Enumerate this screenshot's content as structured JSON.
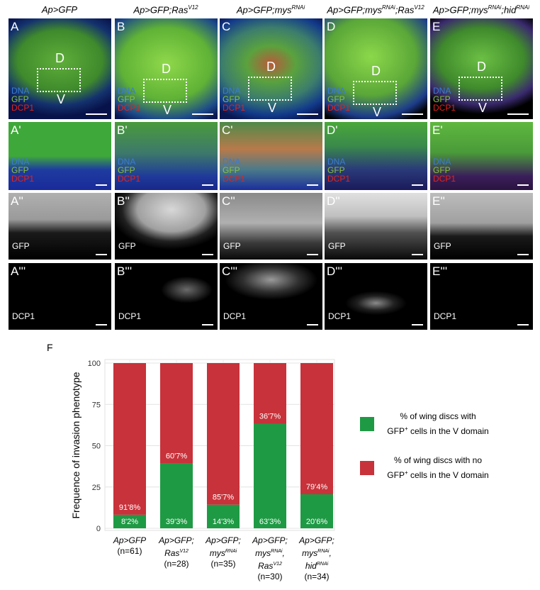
{
  "columns": [
    {
      "id": "A",
      "title_html": "Ap>GFP"
    },
    {
      "id": "B",
      "title_html": "Ap>GFP;Ras<sup>V12</sup>"
    },
    {
      "id": "C",
      "title_html": "Ap>GFP;mys<sup>RNAi</sup>"
    },
    {
      "id": "D",
      "title_html": "Ap>GFP;mys<sup>RNAi</sup>;Ras<sup>V12</sup>"
    },
    {
      "id": "E",
      "title_html": "Ap>GFP;mys<sup>RNAi</sup>;hid<sup>RNAi</sup>"
    }
  ],
  "row_labels": {
    "r0": [
      "A",
      "B",
      "C",
      "D",
      "E"
    ],
    "r1": [
      "A'",
      "B'",
      "C'",
      "D'",
      "E'"
    ],
    "r2": [
      "A''",
      "B''",
      "C''",
      "D''",
      "E''"
    ],
    "r3": [
      "A'''",
      "B'''",
      "C'''",
      "D'''",
      "E'''"
    ]
  },
  "stain": {
    "dna": "DNA",
    "gfp": "GFP",
    "dcp1": "DCP1"
  },
  "domains": {
    "d": "D",
    "v": "V"
  },
  "colors": {
    "green": "#1e9a44",
    "red": "#c8323a"
  },
  "figure_label": "F",
  "legend": [
    {
      "color": "#1e9a44",
      "line1": "% of wing discs with",
      "line2_html": "GFP<sup>+</sup> cells in the V domain"
    },
    {
      "color": "#c8323a",
      "line1": "% of wing discs with no",
      "line2_html": "GFP<sup>+</sup> cells in the V domain"
    }
  ],
  "chart_data": {
    "type": "bar",
    "stacked": true,
    "ylabel": "Frequence of invasion phenotype",
    "ylim": [
      0,
      100
    ],
    "yticks": [
      0,
      25,
      50,
      75,
      100
    ],
    "categories": [
      {
        "line1": "Ap>GFP",
        "line2": "",
        "line3": "",
        "n": "(n=61)"
      },
      {
        "line1": "Ap>GFP;",
        "line2_html": "Ras<sup>V12</sup>",
        "line3": "",
        "n": "(n=28)"
      },
      {
        "line1": "Ap>GFP;",
        "line2_html": "mys<sup>RNAi</sup>",
        "line3": "",
        "n": "(n=35)"
      },
      {
        "line1": "Ap>GFP;",
        "line2_html": "mys<sup>RNAi</sup>,",
        "line3_html": "Ras<sup>V12</sup>",
        "n": "(n=30)"
      },
      {
        "line1": "Ap>GFP;",
        "line2_html": "mys<sup>RNAi</sup>,",
        "line3_html": "hid<sup>RNAi</sup>",
        "n": "(n=34)"
      }
    ],
    "series": [
      {
        "values": [
          8.2,
          39.3,
          14.3,
          63.3,
          20.6
        ],
        "labels": [
          "8'2%",
          "39'3%",
          "14'3%",
          "63'3%",
          "20'6%"
        ],
        "color": "#1e9a44"
      },
      {
        "values": [
          91.8,
          60.7,
          85.7,
          36.7,
          79.4
        ],
        "labels": [
          "91'8%",
          "60'7%",
          "85'7%",
          "36'7%",
          "79'4%"
        ],
        "color": "#c8323a"
      }
    ]
  }
}
